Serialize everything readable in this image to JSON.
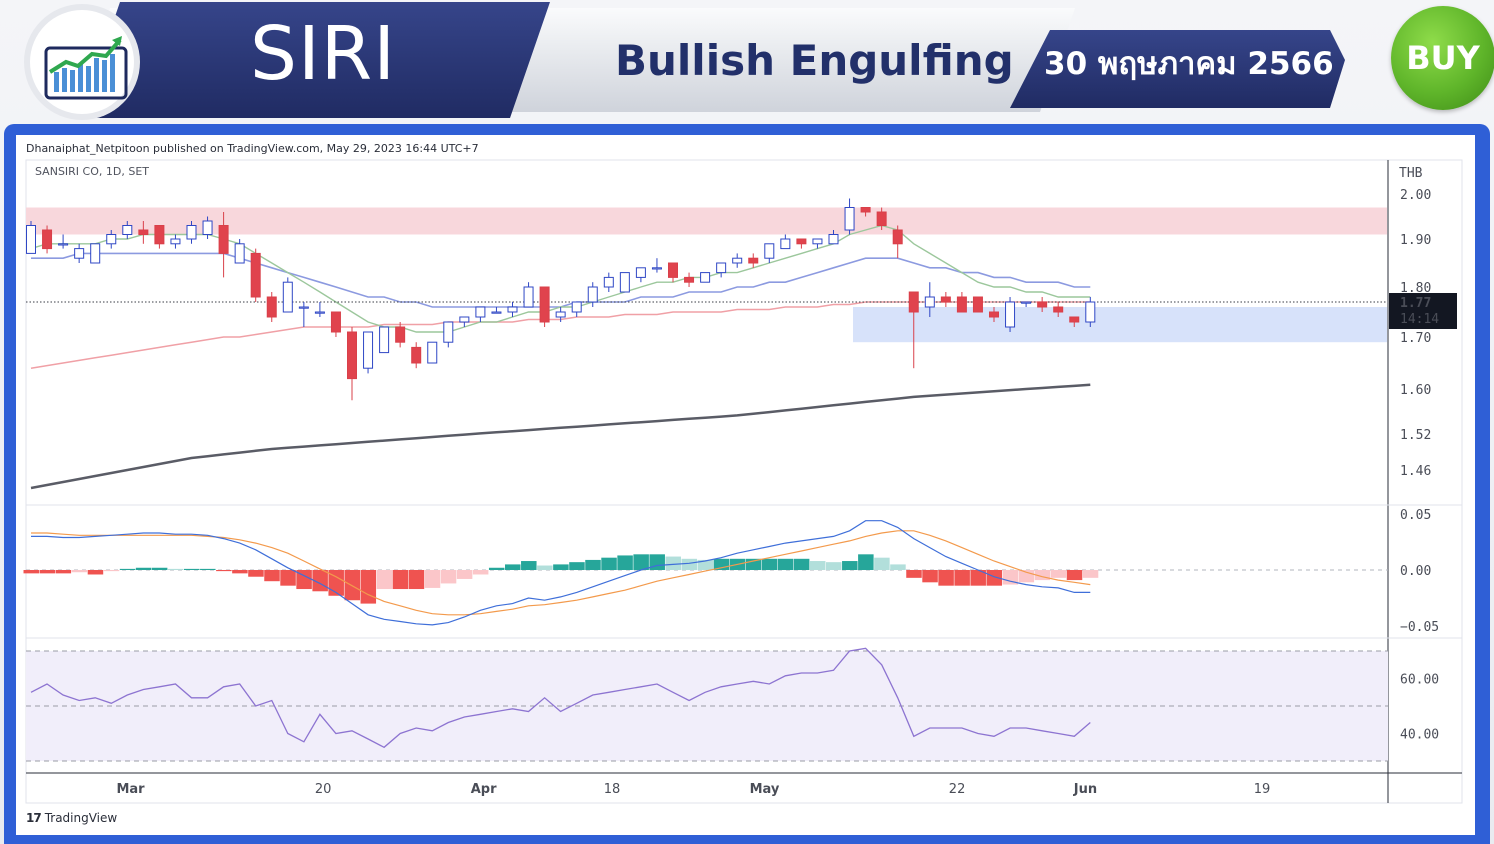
{
  "header": {
    "ticker": "SIRI",
    "pattern": "Bullish Engulfing",
    "date": "30 พฤษภาคม 2566",
    "signal": "BUY",
    "logo_icon": "chart-growth-icon",
    "colors": {
      "navy": "#27336f",
      "buy_green": "#5fb52a",
      "frame_blue": "#2f5fd6"
    }
  },
  "chart_meta": {
    "published": "Dhanaiphat_Netpitoon published on TradingView.com, May 29, 2023 16:44 UTC+7",
    "symbol": "SANSIRI CO, 1D, SET",
    "currency": "THB",
    "last_price": "1.77",
    "countdown": "14:14",
    "tv_brand": "TradingView",
    "tv_icon": "tradingview-logo-icon"
  },
  "chart_data": [
    {
      "type": "candlestick",
      "currency": "THB",
      "y_ticks": [
        "2.00",
        "1.90",
        "1.80",
        "1.70",
        "1.60",
        "1.52",
        "1.46"
      ],
      "x_ticks": [
        "Mar",
        "20",
        "Apr",
        "18",
        "May",
        "22",
        "Jun",
        "19"
      ],
      "resistance_zone": [
        1.91,
        1.97
      ],
      "support_zone": [
        1.69,
        1.76
      ],
      "last_price": 1.77,
      "candles": [
        [
          1.87,
          1.93,
          1.94,
          1.87
        ],
        [
          1.92,
          1.88,
          1.93,
          1.87
        ],
        [
          1.89,
          1.89,
          1.91,
          1.88
        ],
        [
          1.86,
          1.88,
          1.89,
          1.85
        ],
        [
          1.85,
          1.89,
          1.89,
          1.85
        ],
        [
          1.89,
          1.91,
          1.92,
          1.88
        ],
        [
          1.91,
          1.93,
          1.94,
          1.9
        ],
        [
          1.92,
          1.91,
          1.94,
          1.89
        ],
        [
          1.93,
          1.89,
          1.93,
          1.88
        ],
        [
          1.89,
          1.9,
          1.91,
          1.88
        ],
        [
          1.9,
          1.93,
          1.94,
          1.89
        ],
        [
          1.91,
          1.94,
          1.95,
          1.9
        ],
        [
          1.93,
          1.87,
          1.96,
          1.82
        ],
        [
          1.85,
          1.89,
          1.9,
          1.85
        ],
        [
          1.87,
          1.78,
          1.88,
          1.77
        ],
        [
          1.78,
          1.74,
          1.79,
          1.73
        ],
        [
          1.75,
          1.81,
          1.82,
          1.75
        ],
        [
          1.76,
          1.76,
          1.77,
          1.72
        ],
        [
          1.75,
          1.75,
          1.77,
          1.74
        ],
        [
          1.75,
          1.71,
          1.75,
          1.7
        ],
        [
          1.71,
          1.62,
          1.72,
          1.58
        ],
        [
          1.64,
          1.71,
          1.71,
          1.63
        ],
        [
          1.67,
          1.72,
          1.72,
          1.67
        ],
        [
          1.72,
          1.69,
          1.73,
          1.68
        ],
        [
          1.68,
          1.65,
          1.69,
          1.64
        ],
        [
          1.65,
          1.69,
          1.69,
          1.65
        ],
        [
          1.69,
          1.73,
          1.73,
          1.68
        ],
        [
          1.73,
          1.74,
          1.74,
          1.72
        ],
        [
          1.74,
          1.76,
          1.76,
          1.73
        ],
        [
          1.75,
          1.75,
          1.76,
          1.75
        ],
        [
          1.75,
          1.76,
          1.77,
          1.74
        ],
        [
          1.76,
          1.8,
          1.81,
          1.76
        ],
        [
          1.8,
          1.73,
          1.8,
          1.72
        ],
        [
          1.74,
          1.75,
          1.76,
          1.73
        ],
        [
          1.75,
          1.77,
          1.77,
          1.74
        ],
        [
          1.77,
          1.8,
          1.81,
          1.76
        ],
        [
          1.8,
          1.82,
          1.83,
          1.79
        ],
        [
          1.79,
          1.83,
          1.83,
          1.79
        ],
        [
          1.82,
          1.84,
          1.84,
          1.81
        ],
        [
          1.84,
          1.84,
          1.86,
          1.83
        ],
        [
          1.85,
          1.82,
          1.85,
          1.81
        ],
        [
          1.82,
          1.81,
          1.83,
          1.8
        ],
        [
          1.81,
          1.83,
          1.83,
          1.81
        ],
        [
          1.83,
          1.85,
          1.85,
          1.82
        ],
        [
          1.85,
          1.86,
          1.87,
          1.84
        ],
        [
          1.86,
          1.85,
          1.87,
          1.84
        ],
        [
          1.86,
          1.89,
          1.89,
          1.85
        ],
        [
          1.88,
          1.9,
          1.91,
          1.88
        ],
        [
          1.9,
          1.89,
          1.9,
          1.88
        ],
        [
          1.89,
          1.9,
          1.9,
          1.88
        ],
        [
          1.89,
          1.91,
          1.92,
          1.89
        ],
        [
          1.92,
          1.97,
          1.99,
          1.91
        ],
        [
          1.97,
          1.96,
          1.97,
          1.95
        ],
        [
          1.96,
          1.93,
          1.97,
          1.92
        ],
        [
          1.92,
          1.89,
          1.93,
          1.86
        ],
        [
          1.79,
          1.75,
          1.79,
          1.64
        ],
        [
          1.76,
          1.78,
          1.81,
          1.74
        ],
        [
          1.78,
          1.77,
          1.79,
          1.76
        ],
        [
          1.78,
          1.75,
          1.79,
          1.75
        ],
        [
          1.78,
          1.75,
          1.78,
          1.75
        ],
        [
          1.75,
          1.74,
          1.76,
          1.73
        ],
        [
          1.72,
          1.77,
          1.78,
          1.71
        ],
        [
          1.77,
          1.77,
          1.77,
          1.76
        ],
        [
          1.77,
          1.76,
          1.78,
          1.75
        ],
        [
          1.76,
          1.75,
          1.77,
          1.74
        ],
        [
          1.74,
          1.73,
          1.74,
          1.72
        ],
        [
          1.73,
          1.77,
          1.78,
          1.72
        ]
      ],
      "ma_short": [
        1.88,
        1.89,
        1.89,
        1.89,
        1.89,
        1.9,
        1.9,
        1.91,
        1.91,
        1.91,
        1.91,
        1.91,
        1.9,
        1.89,
        1.87,
        1.85,
        1.83,
        1.81,
        1.79,
        1.77,
        1.75,
        1.73,
        1.72,
        1.72,
        1.71,
        1.71,
        1.71,
        1.72,
        1.73,
        1.73,
        1.74,
        1.75,
        1.75,
        1.76,
        1.76,
        1.77,
        1.78,
        1.79,
        1.8,
        1.81,
        1.81,
        1.82,
        1.82,
        1.83,
        1.83,
        1.84,
        1.85,
        1.86,
        1.87,
        1.88,
        1.89,
        1.91,
        1.92,
        1.93,
        1.92,
        1.89,
        1.87,
        1.85,
        1.83,
        1.81,
        1.8,
        1.8,
        1.79,
        1.79,
        1.78,
        1.78,
        1.78
      ],
      "ma_mid": [
        1.86,
        1.86,
        1.86,
        1.87,
        1.87,
        1.87,
        1.87,
        1.87,
        1.87,
        1.87,
        1.87,
        1.87,
        1.87,
        1.86,
        1.85,
        1.84,
        1.83,
        1.82,
        1.81,
        1.8,
        1.79,
        1.78,
        1.78,
        1.77,
        1.77,
        1.76,
        1.76,
        1.76,
        1.76,
        1.76,
        1.76,
        1.76,
        1.76,
        1.76,
        1.77,
        1.77,
        1.77,
        1.77,
        1.78,
        1.78,
        1.78,
        1.79,
        1.79,
        1.79,
        1.8,
        1.8,
        1.81,
        1.81,
        1.82,
        1.83,
        1.84,
        1.85,
        1.86,
        1.86,
        1.86,
        1.85,
        1.84,
        1.84,
        1.83,
        1.83,
        1.82,
        1.82,
        1.81,
        1.81,
        1.81,
        1.8,
        1.8
      ],
      "ma_long": [
        1.64,
        1.645,
        1.65,
        1.655,
        1.66,
        1.665,
        1.67,
        1.675,
        1.68,
        1.685,
        1.69,
        1.695,
        1.7,
        1.7,
        1.705,
        1.71,
        1.715,
        1.72,
        1.72,
        1.72,
        1.72,
        1.72,
        1.725,
        1.725,
        1.725,
        1.725,
        1.73,
        1.73,
        1.73,
        1.73,
        1.73,
        1.735,
        1.735,
        1.735,
        1.74,
        1.74,
        1.74,
        1.745,
        1.745,
        1.745,
        1.75,
        1.75,
        1.75,
        1.75,
        1.755,
        1.755,
        1.755,
        1.76,
        1.76,
        1.76,
        1.765,
        1.765,
        1.77,
        1.77,
        1.77,
        1.77,
        1.77,
        1.77,
        1.77,
        1.77,
        1.77,
        1.77,
        1.77,
        1.77,
        1.77,
        1.77,
        1.77
      ],
      "ma_200": [
        1.43,
        1.435,
        1.44,
        1.445,
        1.45,
        1.455,
        1.46,
        1.465,
        1.47,
        1.475,
        1.48,
        1.483,
        1.486,
        1.489,
        1.492,
        1.495,
        1.497,
        1.499,
        1.501,
        1.503,
        1.505,
        1.507,
        1.509,
        1.511,
        1.513,
        1.515,
        1.517,
        1.519,
        1.521,
        1.523,
        1.525,
        1.527,
        1.529,
        1.531,
        1.533,
        1.535,
        1.537,
        1.539,
        1.541,
        1.543,
        1.545,
        1.547,
        1.549,
        1.551,
        1.553,
        1.556,
        1.559,
        1.562,
        1.565,
        1.568,
        1.571,
        1.574,
        1.577,
        1.58,
        1.583,
        1.586,
        1.588,
        1.59,
        1.592,
        1.594,
        1.596,
        1.598,
        1.6,
        1.602,
        1.604,
        1.606,
        1.608
      ]
    },
    {
      "type": "macd",
      "y_ticks": [
        "0.05",
        "0.00",
        "−0.05"
      ],
      "macd": [
        0.03,
        0.03,
        0.029,
        0.029,
        0.03,
        0.031,
        0.032,
        0.033,
        0.033,
        0.032,
        0.032,
        0.031,
        0.028,
        0.024,
        0.018,
        0.01,
        0.002,
        -0.005,
        -0.012,
        -0.02,
        -0.03,
        -0.04,
        -0.044,
        -0.046,
        -0.048,
        -0.049,
        -0.047,
        -0.042,
        -0.036,
        -0.032,
        -0.03,
        -0.025,
        -0.027,
        -0.024,
        -0.02,
        -0.015,
        -0.01,
        -0.005,
        0.0,
        0.004,
        0.005,
        0.006,
        0.008,
        0.011,
        0.015,
        0.018,
        0.021,
        0.024,
        0.026,
        0.028,
        0.03,
        0.035,
        0.044,
        0.044,
        0.038,
        0.028,
        0.02,
        0.012,
        0.006,
        0.0,
        -0.006,
        -0.01,
        -0.013,
        -0.015,
        -0.016,
        -0.02,
        -0.02
      ],
      "signal": [
        0.033,
        0.033,
        0.032,
        0.031,
        0.031,
        0.031,
        0.031,
        0.031,
        0.031,
        0.031,
        0.031,
        0.03,
        0.029,
        0.027,
        0.024,
        0.02,
        0.015,
        0.008,
        0.001,
        -0.006,
        -0.014,
        -0.022,
        -0.028,
        -0.032,
        -0.036,
        -0.039,
        -0.04,
        -0.04,
        -0.039,
        -0.037,
        -0.035,
        -0.032,
        -0.031,
        -0.029,
        -0.027,
        -0.024,
        -0.021,
        -0.018,
        -0.014,
        -0.01,
        -0.007,
        -0.004,
        -0.001,
        0.002,
        0.005,
        0.008,
        0.011,
        0.014,
        0.017,
        0.02,
        0.023,
        0.026,
        0.03,
        0.033,
        0.035,
        0.035,
        0.031,
        0.026,
        0.02,
        0.014,
        0.008,
        0.003,
        -0.002,
        -0.006,
        -0.009,
        -0.011,
        -0.013
      ],
      "histogram": [
        -0.003,
        -0.003,
        -0.003,
        -0.002,
        -0.004,
        -0.001,
        0.001,
        0.002,
        0.002,
        0.001,
        0.001,
        0.001,
        -0.001,
        -0.003,
        -0.006,
        -0.01,
        -0.014,
        -0.017,
        -0.019,
        -0.023,
        -0.027,
        -0.03,
        -0.017,
        -0.017,
        -0.017,
        -0.016,
        -0.012,
        -0.008,
        -0.004,
        0.002,
        0.005,
        0.008,
        0.004,
        0.005,
        0.007,
        0.009,
        0.011,
        0.013,
        0.014,
        0.014,
        0.012,
        0.01,
        0.009,
        0.01,
        0.01,
        0.01,
        0.01,
        0.01,
        0.01,
        0.008,
        0.007,
        0.008,
        0.014,
        0.011,
        0.005,
        -0.007,
        -0.011,
        -0.014,
        -0.014,
        -0.014,
        -0.014,
        -0.013,
        -0.011,
        -0.009,
        -0.007,
        -0.009,
        -0.007
      ]
    },
    {
      "type": "line",
      "name": "RSI",
      "y_ticks": [
        "60.00",
        "40.00"
      ],
      "bands": [
        70,
        50,
        30
      ],
      "values": [
        55,
        58,
        54,
        52,
        53,
        51,
        54,
        56,
        57,
        58,
        53,
        53,
        57,
        58,
        50,
        52,
        40,
        37,
        47,
        40,
        41,
        38,
        35,
        40,
        42,
        41,
        44,
        46,
        47,
        48,
        49,
        48,
        53,
        48,
        51,
        54,
        55,
        56,
        57,
        58,
        55,
        52,
        55,
        57,
        58,
        59,
        58,
        61,
        62,
        62,
        63,
        70,
        71,
        65,
        53,
        39,
        42,
        42,
        42,
        40,
        39,
        42,
        42,
        41,
        40,
        39,
        44
      ]
    }
  ]
}
